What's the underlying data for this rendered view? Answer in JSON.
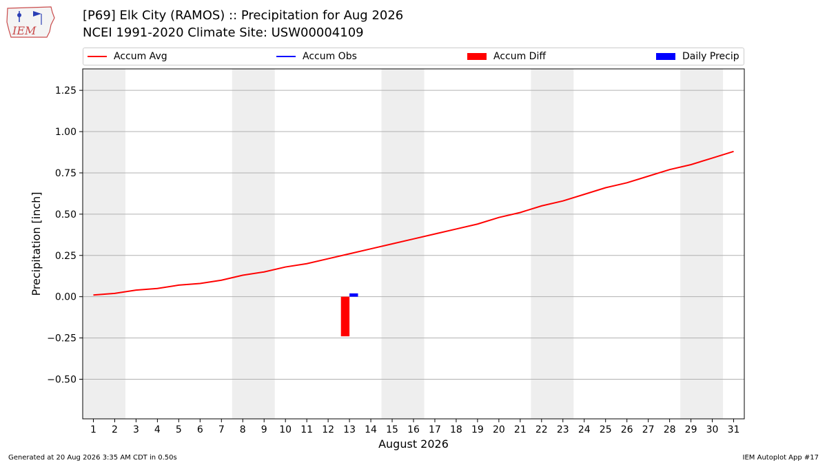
{
  "header": {
    "title_line1": "[P69] Elk City (RAMOS) :: Precipitation for Aug 2026",
    "title_line2": "NCEI 1991-2020 Climate Site: USW00004109",
    "logo_text": "IEM"
  },
  "legend": {
    "items": [
      {
        "label": "Accum Avg",
        "kind": "line",
        "color": "#ff0000"
      },
      {
        "label": "Accum Obs",
        "kind": "line",
        "color": "#0000ff"
      },
      {
        "label": "Accum Diff",
        "kind": "patch",
        "color": "#ff0000"
      },
      {
        "label": "Daily Precip",
        "kind": "patch",
        "color": "#0000ff"
      }
    ]
  },
  "footer": {
    "generated": "Generated at 20 Aug 2026 3:35 AM CDT in 0.50s",
    "app": "IEM Autoplot App #17"
  },
  "chart_data": {
    "type": "line",
    "xlabel": "August 2026",
    "ylabel": "Precipitation [inch]",
    "xlim": [
      0.5,
      31.5
    ],
    "ylim": [
      -0.74,
      1.38
    ],
    "yticks": [
      -0.5,
      -0.25,
      0.0,
      0.25,
      0.5,
      0.75,
      1.0,
      1.25
    ],
    "ytick_labels": [
      "−0.50",
      "−0.25",
      "0.00",
      "0.25",
      "0.50",
      "0.75",
      "1.00",
      "1.25"
    ],
    "x": [
      1,
      2,
      3,
      4,
      5,
      6,
      7,
      8,
      9,
      10,
      11,
      12,
      13,
      14,
      15,
      16,
      17,
      18,
      19,
      20,
      21,
      22,
      23,
      24,
      25,
      26,
      27,
      28,
      29,
      30,
      31
    ],
    "xtick_labels": [
      "1",
      "2",
      "3",
      "4",
      "5",
      "6",
      "7",
      "8",
      "9",
      "10",
      "11",
      "12",
      "13",
      "14",
      "15",
      "16",
      "17",
      "18",
      "19",
      "20",
      "21",
      "22",
      "23",
      "24",
      "25",
      "26",
      "27",
      "28",
      "29",
      "30",
      "31"
    ],
    "weekend_bands": [
      [
        0.5,
        2.5
      ],
      [
        7.5,
        9.5
      ],
      [
        14.5,
        16.5
      ],
      [
        21.5,
        23.5
      ],
      [
        28.5,
        30.5
      ]
    ],
    "grid": "y",
    "series": [
      {
        "name": "Accum Avg",
        "kind": "line",
        "color": "#ff0000",
        "values": [
          0.01,
          0.02,
          0.04,
          0.05,
          0.07,
          0.08,
          0.1,
          0.13,
          0.15,
          0.18,
          0.2,
          0.23,
          0.26,
          0.29,
          0.32,
          0.35,
          0.38,
          0.41,
          0.44,
          0.48,
          0.51,
          0.55,
          0.58,
          0.62,
          0.66,
          0.69,
          0.73,
          0.77,
          0.8,
          0.84,
          0.88
        ]
      },
      {
        "name": "Accum Diff",
        "kind": "bar",
        "color": "#ff0000",
        "x": [
          13
        ],
        "values": [
          -0.24
        ]
      },
      {
        "name": "Daily Precip",
        "kind": "bar",
        "color": "#0000ff",
        "x": [
          13
        ],
        "values": [
          0.02
        ]
      }
    ]
  }
}
